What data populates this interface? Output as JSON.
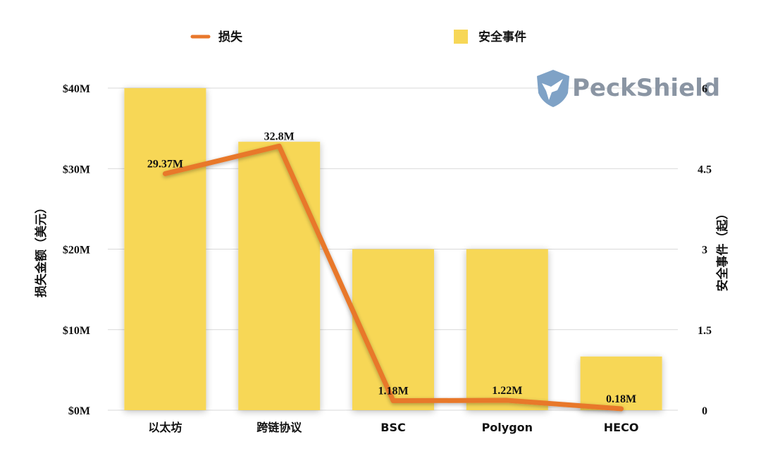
{
  "legend": {
    "line_label": "损失",
    "bar_label": "安全事件"
  },
  "watermark": {
    "text": "PeckShield",
    "icon": "shield-eagle-logo"
  },
  "colors": {
    "bar": "#f7d757",
    "line": "#e8782c",
    "grid": "#d9d9d9",
    "text": "#111111"
  },
  "chart_data": {
    "type": "bar",
    "categories": [
      "以太坊",
      "跨链协议",
      "BSC",
      "Polygon",
      "HECO"
    ],
    "series": [
      {
        "name": "安全事件",
        "type": "bar",
        "axis": "right",
        "values": [
          6,
          5,
          3,
          3,
          1
        ]
      },
      {
        "name": "损失",
        "type": "line",
        "axis": "left",
        "values": [
          29.37,
          32.8,
          1.18,
          1.22,
          0.18
        ],
        "labels": [
          "29.37M",
          "32.8M",
          "1.18M",
          "1.22M",
          "0.18M"
        ]
      }
    ],
    "left_axis": {
      "title": "损失金额（美元）",
      "ticks": [
        "$0M",
        "$10M",
        "$20M",
        "$30M",
        "$40M"
      ],
      "range": [
        0,
        40
      ]
    },
    "right_axis": {
      "title": "安全事件（起）",
      "ticks": [
        "0",
        "1.5",
        "3",
        "4.5",
        "6"
      ],
      "range": [
        0,
        6
      ]
    },
    "legend_position": "top",
    "grid": true
  }
}
